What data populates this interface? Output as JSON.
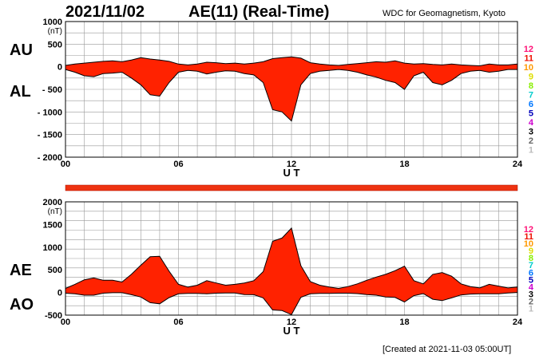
{
  "header": {
    "date": "2021/11/02",
    "title": "AE(11) (Real-Time)",
    "source": "WDC for Geomagnetism, Kyoto"
  },
  "footer": {
    "created": "[Created at 2021-11-03 05:00UT]"
  },
  "labels": {
    "au": "AU",
    "al": "AL",
    "ae": "AE",
    "ao": "AO"
  },
  "colors": {
    "fill": "#ff2200",
    "outline": "#000000",
    "grid": "#999999",
    "bar": "#ee3311"
  },
  "legend": {
    "items": [
      {
        "label": "12",
        "color": "#ff1177"
      },
      {
        "label": "11",
        "color": "#ee1100"
      },
      {
        "label": "10",
        "color": "#ff9900"
      },
      {
        "label": "9",
        "color": "#dddd00"
      },
      {
        "label": "8",
        "color": "#88ee00"
      },
      {
        "label": "7",
        "color": "#00cccc"
      },
      {
        "label": "6",
        "color": "#0077ff"
      },
      {
        "label": "5",
        "color": "#0000bb"
      },
      {
        "label": "4",
        "color": "#cc00cc"
      },
      {
        "label": "3",
        "color": "#000000"
      },
      {
        "label": "2",
        "color": "#666666"
      },
      {
        "label": "1",
        "color": "#bbbbbb"
      }
    ]
  },
  "chart_data": [
    {
      "type": "area",
      "ylabel": "(nT)",
      "xlabel": "U T",
      "xlim": [
        0,
        24
      ],
      "ylim": [
        -2000,
        1000
      ],
      "ytick_labels": [
        "1000",
        "500",
        "0",
        "- 500",
        "- 1000",
        "- 1500",
        "- 2000"
      ],
      "ytick_values": [
        1000,
        500,
        0,
        -500,
        -1000,
        -1500,
        -2000
      ],
      "xtick_labels": [
        "00",
        "06",
        "12",
        "18",
        "24"
      ],
      "xtick_values": [
        0,
        6,
        12,
        18,
        24
      ],
      "grid": true,
      "series": [
        {
          "name": "AU",
          "x": [
            0,
            0.5,
            1,
            1.5,
            2,
            2.5,
            3,
            3.5,
            4,
            4.5,
            5,
            5.5,
            6,
            6.5,
            7,
            7.5,
            8,
            8.5,
            9,
            9.5,
            10,
            10.5,
            11,
            11.5,
            12,
            12.5,
            13,
            13.5,
            14,
            14.5,
            15,
            15.5,
            16,
            16.5,
            17,
            17.5,
            18,
            18.5,
            19,
            19.5,
            20,
            20.5,
            21,
            21.5,
            22,
            22.5,
            23,
            23.5,
            24
          ],
          "values": [
            30,
            60,
            80,
            100,
            120,
            130,
            110,
            150,
            200,
            170,
            150,
            120,
            60,
            40,
            60,
            100,
            90,
            70,
            80,
            60,
            80,
            110,
            180,
            200,
            220,
            190,
            90,
            60,
            40,
            30,
            50,
            70,
            90,
            110,
            100,
            130,
            80,
            60,
            70,
            50,
            40,
            60,
            40,
            30,
            20,
            60,
            40,
            40,
            60
          ]
        },
        {
          "name": "AL",
          "x": [
            0,
            0.5,
            1,
            1.5,
            2,
            2.5,
            3,
            3.5,
            4,
            4.5,
            5,
            5.5,
            6,
            6.5,
            7,
            7.5,
            8,
            8.5,
            9,
            9.5,
            10,
            10.5,
            11,
            11.5,
            12,
            12.5,
            13,
            13.5,
            14,
            14.5,
            15,
            15.5,
            16,
            16.5,
            17,
            17.5,
            18,
            18.5,
            19,
            19.5,
            20,
            20.5,
            21,
            21.5,
            22,
            22.5,
            23,
            23.5,
            24
          ],
          "values": [
            -60,
            -120,
            -200,
            -220,
            -150,
            -140,
            -120,
            -250,
            -400,
            -620,
            -650,
            -350,
            -120,
            -80,
            -100,
            -160,
            -120,
            -90,
            -100,
            -150,
            -180,
            -350,
            -950,
            -1000,
            -1200,
            -400,
            -150,
            -100,
            -80,
            -60,
            -80,
            -120,
            -180,
            -230,
            -300,
            -350,
            -500,
            -200,
            -120,
            -350,
            -400,
            -300,
            -150,
            -100,
            -80,
            -120,
            -100,
            -60,
            -60
          ]
        }
      ]
    },
    {
      "type": "area",
      "ylabel": "(nT)",
      "xlabel": "U T",
      "xlim": [
        0,
        24
      ],
      "ylim": [
        -500,
        2000
      ],
      "ytick_labels": [
        "2000",
        "1500",
        "1000",
        "500",
        "0",
        "-500"
      ],
      "ytick_values": [
        2000,
        1500,
        1000,
        500,
        0,
        -500
      ],
      "xtick_labels": [
        "00",
        "06",
        "12",
        "18",
        "24"
      ],
      "xtick_values": [
        0,
        6,
        12,
        18,
        24
      ],
      "grid": true,
      "series": [
        {
          "name": "AE",
          "x": [
            0,
            0.5,
            1,
            1.5,
            2,
            2.5,
            3,
            3.5,
            4,
            4.5,
            5,
            5.5,
            6,
            6.5,
            7,
            7.5,
            8,
            8.5,
            9,
            9.5,
            10,
            10.5,
            11,
            11.5,
            12,
            12.5,
            13,
            13.5,
            14,
            14.5,
            15,
            15.5,
            16,
            16.5,
            17,
            17.5,
            18,
            18.5,
            19,
            19.5,
            20,
            20.5,
            21,
            21.5,
            22,
            22.5,
            23,
            23.5,
            24
          ],
          "values": [
            90,
            180,
            280,
            320,
            270,
            270,
            230,
            400,
            600,
            790,
            800,
            470,
            180,
            120,
            160,
            260,
            210,
            160,
            180,
            210,
            260,
            460,
            1130,
            1200,
            1420,
            590,
            240,
            160,
            120,
            90,
            130,
            190,
            270,
            340,
            400,
            480,
            580,
            260,
            190,
            400,
            440,
            360,
            190,
            130,
            100,
            180,
            140,
            100,
            120
          ]
        },
        {
          "name": "AO",
          "x": [
            0,
            0.5,
            1,
            1.5,
            2,
            2.5,
            3,
            3.5,
            4,
            4.5,
            5,
            5.5,
            6,
            6.5,
            7,
            7.5,
            8,
            8.5,
            9,
            9.5,
            10,
            10.5,
            11,
            11.5,
            12,
            12.5,
            13,
            13.5,
            14,
            14.5,
            15,
            15.5,
            16,
            16.5,
            17,
            17.5,
            18,
            18.5,
            19,
            19.5,
            20,
            20.5,
            21,
            21.5,
            22,
            22.5,
            23,
            23.5,
            24
          ],
          "values": [
            -15,
            -30,
            -60,
            -60,
            -15,
            -5,
            -5,
            -50,
            -100,
            -225,
            -250,
            -115,
            -30,
            -20,
            -20,
            -30,
            -15,
            -10,
            -10,
            -45,
            -50,
            -120,
            -385,
            -400,
            -490,
            -105,
            -30,
            -20,
            -20,
            -15,
            -15,
            -25,
            -45,
            -60,
            -100,
            -110,
            -210,
            -70,
            -25,
            -150,
            -180,
            -120,
            -55,
            -35,
            -30,
            -30,
            -30,
            -10,
            0
          ]
        }
      ]
    }
  ]
}
